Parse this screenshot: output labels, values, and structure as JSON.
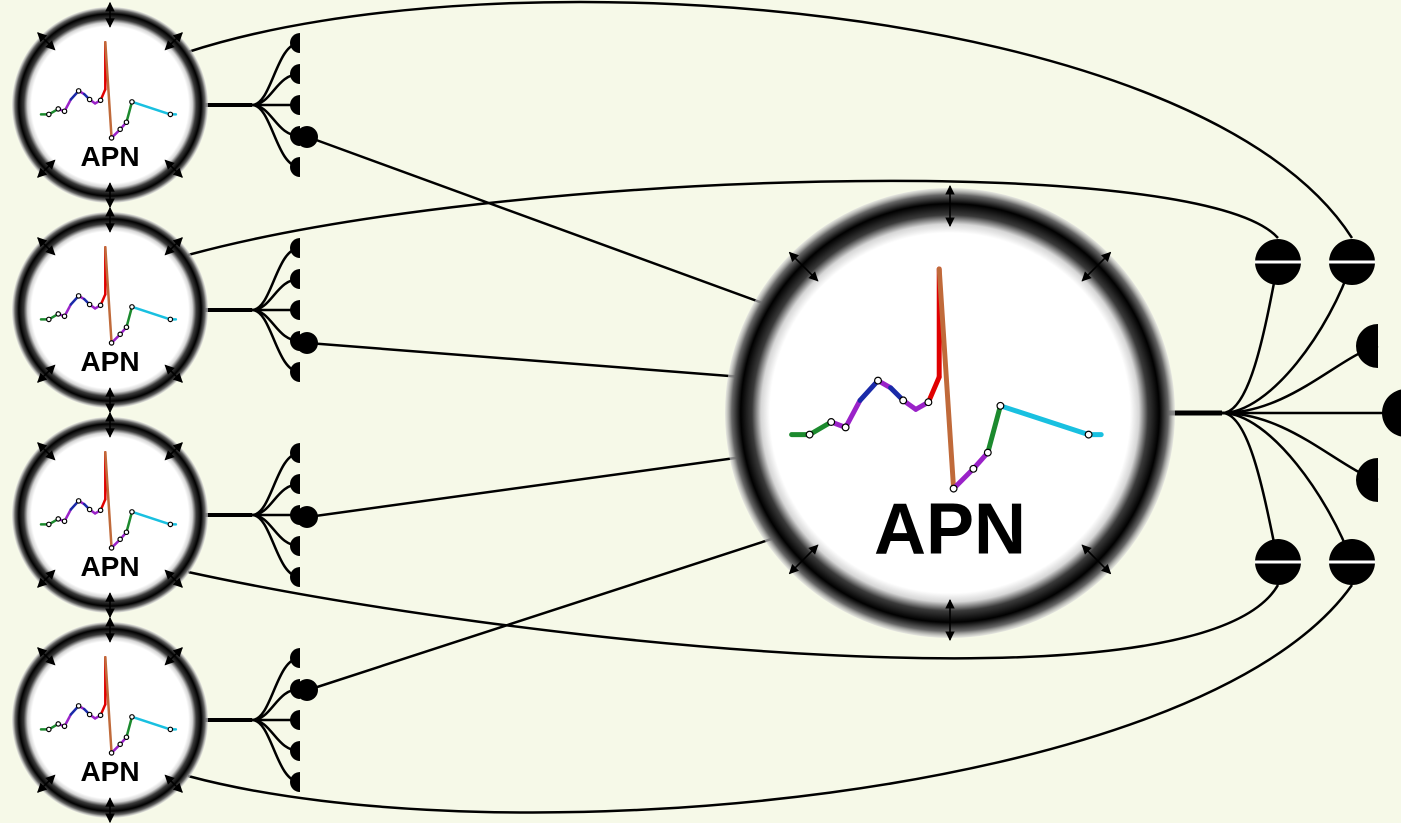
{
  "diagram": {
    "background": "#f6f9e8",
    "neuron_label": "APN",
    "colors": {
      "line": "#000000",
      "spike": "#e00000",
      "baseline": "#19c0e0",
      "oscillation": "#9a22c8",
      "oscillation_alt": "#1a2aa8",
      "rise": "#1c8a2e",
      "undershoot": "#c06a3a",
      "soma_fill": "#ffffff"
    },
    "small_neurons": [
      {
        "name": "neuron-1",
        "label": "APN"
      },
      {
        "name": "neuron-2",
        "label": "APN"
      },
      {
        "name": "neuron-3",
        "label": "APN"
      },
      {
        "name": "neuron-4",
        "label": "APN"
      }
    ],
    "large_neuron": {
      "name": "neuron-main",
      "label": "APN"
    }
  }
}
